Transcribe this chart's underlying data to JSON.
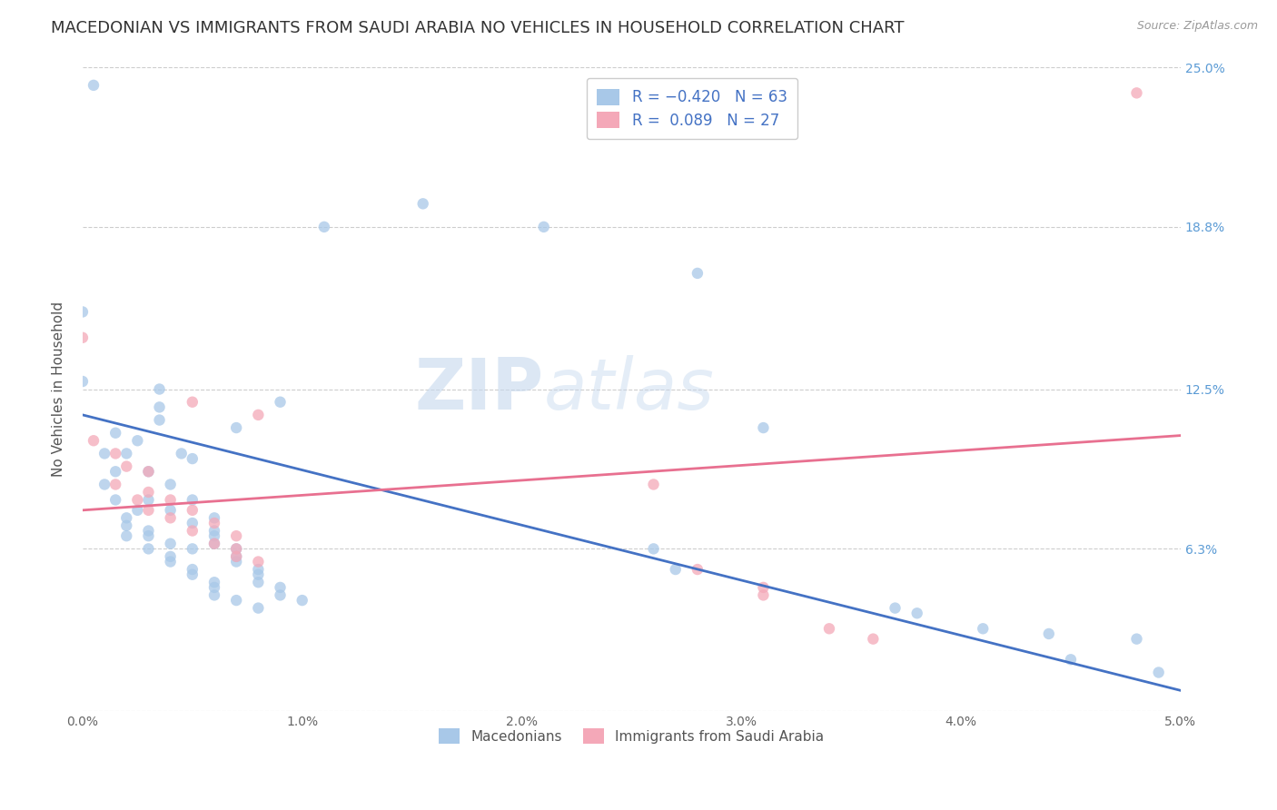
{
  "title": "MACEDONIAN VS IMMIGRANTS FROM SAUDI ARABIA NO VEHICLES IN HOUSEHOLD CORRELATION CHART",
  "source": "Source: ZipAtlas.com",
  "ylabel": "No Vehicles in Household",
  "legend_label_macedonians": "Macedonians",
  "legend_label_saudi": "Immigrants from Saudi Arabia",
  "watermark_zip": "ZIP",
  "watermark_atlas": "atlas",
  "x_min": 0.0,
  "x_max": 0.05,
  "y_min": 0.0,
  "y_max": 0.25,
  "blue_scatter": [
    [
      0.0005,
      0.243
    ],
    [
      0.0155,
      0.197
    ],
    [
      0.0,
      0.155
    ],
    [
      0.011,
      0.188
    ],
    [
      0.021,
      0.188
    ],
    [
      0.028,
      0.17
    ],
    [
      0.0,
      0.128
    ],
    [
      0.0035,
      0.125
    ],
    [
      0.009,
      0.12
    ],
    [
      0.0035,
      0.118
    ],
    [
      0.0035,
      0.113
    ],
    [
      0.007,
      0.11
    ],
    [
      0.0015,
      0.108
    ],
    [
      0.0025,
      0.105
    ],
    [
      0.001,
      0.1
    ],
    [
      0.002,
      0.1
    ],
    [
      0.0045,
      0.1
    ],
    [
      0.005,
      0.098
    ],
    [
      0.0015,
      0.093
    ],
    [
      0.003,
      0.093
    ],
    [
      0.001,
      0.088
    ],
    [
      0.004,
      0.088
    ],
    [
      0.031,
      0.11
    ],
    [
      0.0015,
      0.082
    ],
    [
      0.003,
      0.082
    ],
    [
      0.005,
      0.082
    ],
    [
      0.0025,
      0.078
    ],
    [
      0.004,
      0.078
    ],
    [
      0.002,
      0.075
    ],
    [
      0.006,
      0.075
    ],
    [
      0.002,
      0.072
    ],
    [
      0.005,
      0.073
    ],
    [
      0.003,
      0.07
    ],
    [
      0.006,
      0.07
    ],
    [
      0.002,
      0.068
    ],
    [
      0.003,
      0.068
    ],
    [
      0.006,
      0.068
    ],
    [
      0.004,
      0.065
    ],
    [
      0.006,
      0.065
    ],
    [
      0.003,
      0.063
    ],
    [
      0.005,
      0.063
    ],
    [
      0.007,
      0.063
    ],
    [
      0.004,
      0.06
    ],
    [
      0.007,
      0.06
    ],
    [
      0.004,
      0.058
    ],
    [
      0.007,
      0.058
    ],
    [
      0.005,
      0.055
    ],
    [
      0.008,
      0.055
    ],
    [
      0.005,
      0.053
    ],
    [
      0.008,
      0.053
    ],
    [
      0.006,
      0.05
    ],
    [
      0.008,
      0.05
    ],
    [
      0.006,
      0.048
    ],
    [
      0.009,
      0.048
    ],
    [
      0.006,
      0.045
    ],
    [
      0.009,
      0.045
    ],
    [
      0.007,
      0.043
    ],
    [
      0.01,
      0.043
    ],
    [
      0.008,
      0.04
    ],
    [
      0.026,
      0.063
    ],
    [
      0.027,
      0.055
    ],
    [
      0.037,
      0.04
    ],
    [
      0.038,
      0.038
    ],
    [
      0.041,
      0.032
    ],
    [
      0.044,
      0.03
    ],
    [
      0.045,
      0.02
    ],
    [
      0.048,
      0.028
    ],
    [
      0.049,
      0.015
    ]
  ],
  "pink_scatter": [
    [
      0.0,
      0.145
    ],
    [
      0.005,
      0.12
    ],
    [
      0.008,
      0.115
    ],
    [
      0.0005,
      0.105
    ],
    [
      0.0015,
      0.1
    ],
    [
      0.002,
      0.095
    ],
    [
      0.003,
      0.093
    ],
    [
      0.0015,
      0.088
    ],
    [
      0.003,
      0.085
    ],
    [
      0.0025,
      0.082
    ],
    [
      0.004,
      0.082
    ],
    [
      0.003,
      0.078
    ],
    [
      0.005,
      0.078
    ],
    [
      0.004,
      0.075
    ],
    [
      0.006,
      0.073
    ],
    [
      0.005,
      0.07
    ],
    [
      0.007,
      0.068
    ],
    [
      0.006,
      0.065
    ],
    [
      0.007,
      0.063
    ],
    [
      0.007,
      0.06
    ],
    [
      0.008,
      0.058
    ],
    [
      0.026,
      0.088
    ],
    [
      0.028,
      0.055
    ],
    [
      0.031,
      0.048
    ],
    [
      0.031,
      0.045
    ],
    [
      0.048,
      0.24
    ],
    [
      0.034,
      0.032
    ],
    [
      0.036,
      0.028
    ]
  ],
  "blue_line_x": [
    0.0,
    0.05
  ],
  "blue_line_y": [
    0.115,
    0.008
  ],
  "pink_line_x": [
    0.0,
    0.05
  ],
  "pink_line_y": [
    0.078,
    0.107
  ],
  "dot_color_blue": "#a8c8e8",
  "dot_color_pink": "#f4a8b8",
  "line_color_blue": "#4472c4",
  "line_color_pink": "#e87090",
  "background_color": "#ffffff",
  "grid_color": "#c8c8c8",
  "title_fontsize": 13,
  "axis_fontsize": 11,
  "tick_fontsize": 10,
  "dot_size": 80,
  "dot_alpha": 0.75
}
